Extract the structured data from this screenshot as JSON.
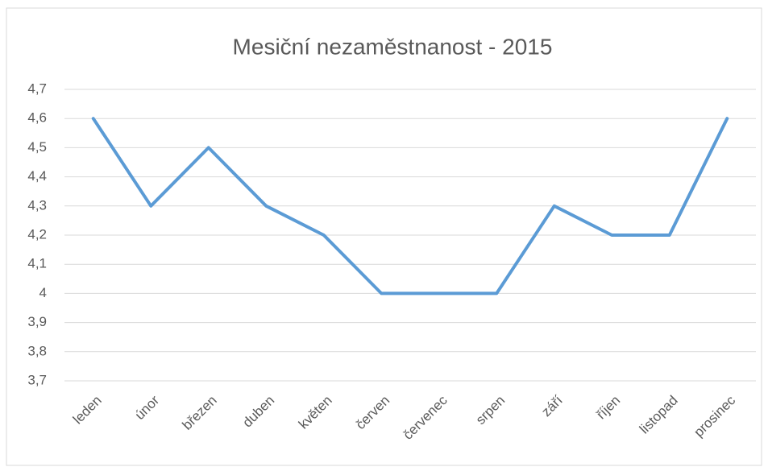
{
  "chart_data": {
    "type": "line",
    "title": "Mesiční nezaměstnanost - 2015",
    "categories": [
      "leden",
      "únor",
      "březen",
      "duben",
      "květen",
      "červen",
      "červenec",
      "srpen",
      "září",
      "říjen",
      "listopad",
      "prosinec"
    ],
    "values": [
      4.6,
      4.3,
      4.5,
      4.3,
      4.2,
      4.0,
      4.0,
      4.0,
      4.3,
      4.2,
      4.2,
      4.6
    ],
    "color": "#5b9bd5",
    "ylim": [
      3.7,
      4.7
    ],
    "yticks": [
      {
        "value": 3.7,
        "label": "3,7"
      },
      {
        "value": 3.8,
        "label": "3,8"
      },
      {
        "value": 3.9,
        "label": "3,9"
      },
      4,
      {
        "value": 4.1,
        "label": "4,1"
      },
      {
        "value": 4.2,
        "label": "4,2"
      },
      {
        "value": 4.3,
        "label": "4,3"
      },
      {
        "value": 4.4,
        "label": "4,4"
      },
      {
        "value": 4.5,
        "label": "4,5"
      },
      {
        "value": 4.6,
        "label": "4,6"
      },
      {
        "value": 4.7,
        "label": "4,7"
      }
    ],
    "grid": true
  }
}
